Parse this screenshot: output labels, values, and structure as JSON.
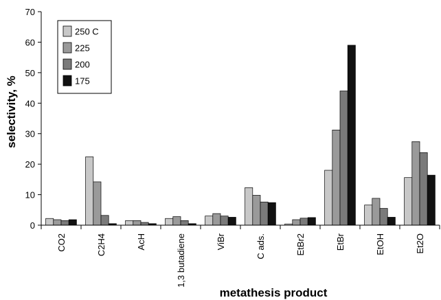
{
  "chart_data": {
    "type": "bar",
    "xlabel": "metathesis product",
    "ylabel": "selectivity, %",
    "ylim": [
      0,
      70
    ],
    "yticks": [
      0,
      10,
      20,
      30,
      40,
      50,
      60,
      70
    ],
    "grid": false,
    "legend_position": "top-left",
    "categories": [
      "CO2",
      "C2H4",
      "AcH",
      "1,3 butadiene",
      "ViBr",
      "C ads.",
      "EtBr2",
      "EtBr",
      "EtOH",
      "Et2O"
    ],
    "series": [
      {
        "name": "250 C",
        "color": "#c8c8c8",
        "values": [
          2.2,
          22.4,
          1.5,
          2.2,
          3.0,
          12.3,
          0.4,
          18.0,
          6.6,
          15.6
        ]
      },
      {
        "name": "225",
        "color": "#9a9a9a",
        "values": [
          1.8,
          14.2,
          1.5,
          2.8,
          3.8,
          9.8,
          1.8,
          31.2,
          8.8,
          27.4
        ]
      },
      {
        "name": "200",
        "color": "#7a7a7a",
        "values": [
          1.5,
          3.2,
          0.9,
          1.5,
          3.0,
          7.6,
          2.3,
          44.0,
          5.5,
          23.8
        ]
      },
      {
        "name": "175",
        "color": "#111111",
        "values": [
          1.8,
          0.5,
          0.5,
          0.5,
          2.6,
          7.4,
          2.5,
          59.0,
          2.6,
          16.4
        ]
      }
    ]
  }
}
